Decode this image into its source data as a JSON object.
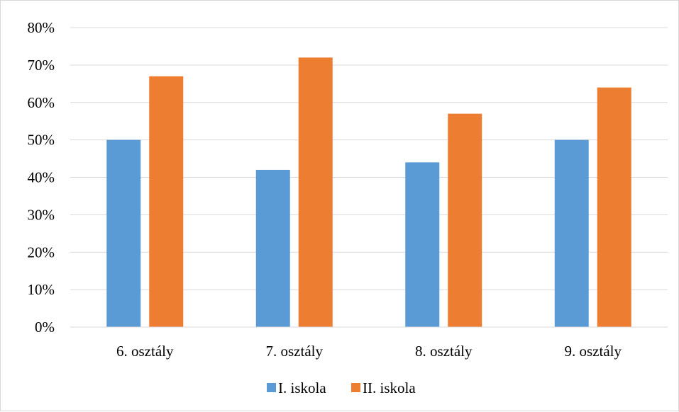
{
  "chart_data": {
    "type": "bar",
    "title": "",
    "xlabel": "",
    "ylabel": "",
    "categories": [
      "6. osztály",
      "7. osztály",
      "8. osztály",
      "9. osztály"
    ],
    "series": [
      {
        "name": "I. iskola",
        "values": [
          50,
          42,
          44,
          50
        ],
        "color": "#5b9bd5"
      },
      {
        "name": "II. iskola",
        "values": [
          67,
          72,
          57,
          64
        ],
        "color": "#ed7d31"
      }
    ],
    "ylim": [
      0,
      80
    ],
    "yticks": [
      0,
      10,
      20,
      30,
      40,
      50,
      60,
      70,
      80
    ],
    "ytick_labels": [
      "0%",
      "10%",
      "20%",
      "30%",
      "40%",
      "50%",
      "60%",
      "70%",
      "80%"
    ],
    "grid": true,
    "gridline_color": "#d9d9d9",
    "legend_position": "bottom"
  }
}
